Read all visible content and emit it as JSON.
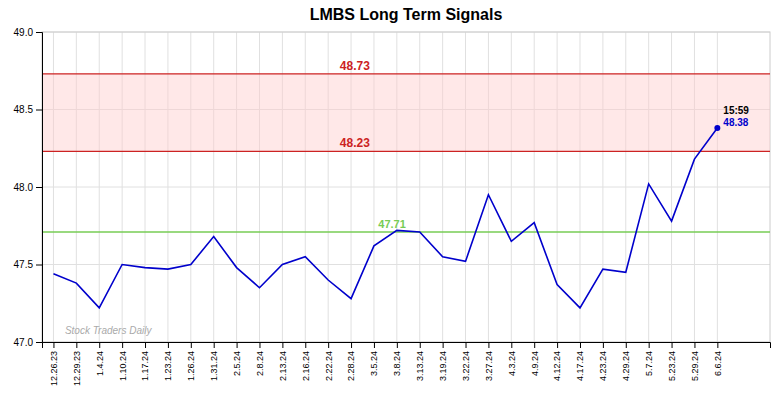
{
  "chart_data": {
    "type": "line",
    "title": "LMBS Long Term Signals",
    "categories": [
      "12.26.23",
      "12.29.23",
      "1.4.24",
      "1.10.24",
      "1.17.24",
      "1.23.24",
      "1.26.24",
      "1.31.24",
      "2.5.24",
      "2.8.24",
      "2.13.24",
      "2.16.24",
      "2.22.24",
      "2.28.24",
      "3.5.24",
      "3.8.24",
      "3.13.24",
      "3.19.24",
      "3.22.24",
      "3.27.24",
      "4.3.24",
      "4.9.24",
      "4.12.24",
      "4.17.24",
      "4.23.24",
      "4.29.24",
      "5.7.24",
      "5.23.24",
      "5.29.24",
      "6.6.24"
    ],
    "values": [
      47.44,
      47.38,
      47.22,
      47.5,
      47.48,
      47.47,
      47.5,
      47.68,
      47.48,
      47.35,
      47.5,
      47.55,
      47.4,
      47.28,
      47.62,
      47.72,
      47.71,
      47.55,
      47.52,
      47.95,
      47.65,
      47.77,
      47.37,
      47.22,
      47.47,
      47.45,
      48.02,
      47.78,
      48.18,
      48.38
    ],
    "color": "#0000cc",
    "ylim": [
      47.0,
      49.0
    ],
    "yticks": [
      {
        "value": 47.0,
        "label": "47.0"
      },
      {
        "value": 47.5,
        "label": "47.5"
      },
      {
        "value": 48.0,
        "label": "48.0"
      },
      {
        "value": 48.5,
        "label": "48.5"
      },
      {
        "value": 49.0,
        "label": "49.0"
      }
    ],
    "grid": true,
    "hlines": [
      {
        "value": 47.71,
        "label": "47.71",
        "color": "#77cc55"
      },
      {
        "value": 48.73,
        "label": "48.73",
        "color": "#cc2222"
      },
      {
        "value": 48.23,
        "label": "48.23",
        "color": "#cc2222"
      }
    ],
    "band": {
      "values": [
        48.23,
        48.73
      ],
      "color": "#ffcccc"
    },
    "annotations": [
      {
        "text": "15:59",
        "color": "#000000"
      },
      {
        "text": "48.38",
        "color": "#0000cc"
      },
      {
        "text": "Stock Traders Daily",
        "color": "#aaaaaa"
      }
    ]
  }
}
